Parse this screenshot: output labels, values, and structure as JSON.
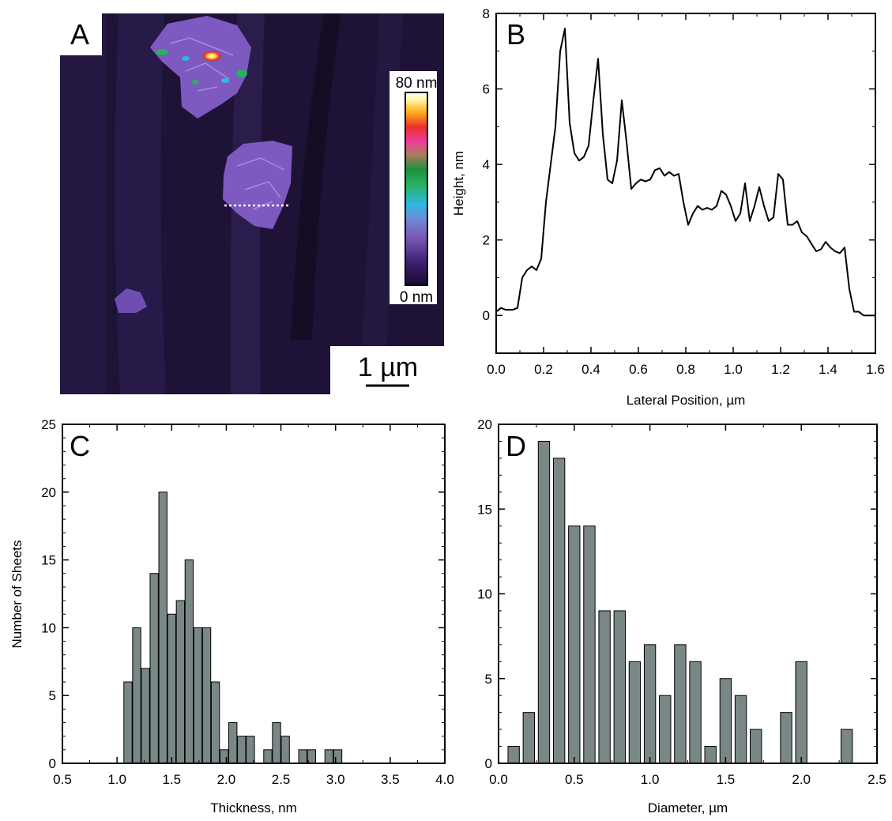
{
  "panels": {
    "A": {
      "label": "A",
      "colorbar_top": "80 nm",
      "colorbar_bottom": "0 nm",
      "scalebar_label": "1 µm",
      "colors": {
        "background": "#1e1336",
        "flake": "#7d59c0",
        "line": "#ffffff"
      }
    },
    "B": {
      "label": "B"
    },
    "C": {
      "label": "C"
    },
    "D": {
      "label": "D"
    }
  },
  "chart_data": [
    {
      "panel": "B",
      "type": "line",
      "xlabel": "Lateral Position, µm",
      "ylabel": "Height, nm",
      "xlim": [
        0.0,
        1.6
      ],
      "ylim": [
        -1,
        8
      ],
      "xticks": [
        "0.0",
        "0.2",
        "0.4",
        "0.6",
        "0.8",
        "1.0",
        "1.2",
        "1.4",
        "1.6"
      ],
      "yticks": [
        "0",
        "2",
        "4",
        "6",
        "8"
      ],
      "x": [
        0.0,
        0.02,
        0.04,
        0.07,
        0.09,
        0.11,
        0.13,
        0.15,
        0.17,
        0.19,
        0.21,
        0.23,
        0.25,
        0.27,
        0.29,
        0.31,
        0.33,
        0.35,
        0.37,
        0.39,
        0.41,
        0.43,
        0.45,
        0.47,
        0.49,
        0.51,
        0.53,
        0.55,
        0.57,
        0.59,
        0.61,
        0.63,
        0.65,
        0.67,
        0.69,
        0.71,
        0.73,
        0.75,
        0.77,
        0.79,
        0.81,
        0.83,
        0.85,
        0.87,
        0.89,
        0.91,
        0.93,
        0.95,
        0.97,
        0.99,
        1.01,
        1.03,
        1.05,
        1.07,
        1.09,
        1.11,
        1.13,
        1.15,
        1.17,
        1.19,
        1.21,
        1.23,
        1.25,
        1.27,
        1.29,
        1.31,
        1.33,
        1.35,
        1.37,
        1.39,
        1.41,
        1.43,
        1.45,
        1.47,
        1.49,
        1.51,
        1.53,
        1.55,
        1.57,
        1.6
      ],
      "y": [
        0.1,
        0.2,
        0.15,
        0.15,
        0.2,
        1.0,
        1.2,
        1.3,
        1.2,
        1.5,
        3.0,
        4.0,
        5.0,
        7.0,
        7.6,
        5.1,
        4.3,
        4.1,
        4.2,
        4.5,
        5.7,
        6.8,
        4.8,
        3.6,
        3.5,
        4.1,
        5.7,
        4.6,
        3.35,
        3.5,
        3.6,
        3.55,
        3.6,
        3.85,
        3.9,
        3.7,
        3.8,
        3.7,
        3.75,
        3.0,
        2.4,
        2.7,
        2.9,
        2.8,
        2.85,
        2.8,
        2.9,
        3.3,
        3.2,
        2.9,
        2.5,
        2.7,
        3.5,
        2.5,
        2.9,
        3.4,
        2.9,
        2.5,
        2.6,
        3.75,
        3.6,
        2.4,
        2.4,
        2.5,
        2.2,
        2.1,
        1.9,
        1.7,
        1.75,
        1.95,
        1.8,
        1.7,
        1.65,
        1.8,
        0.7,
        0.1,
        0.1,
        0.0,
        0.0,
        0.0
      ]
    },
    {
      "panel": "C",
      "type": "bar",
      "xlabel": "Thickness, nm",
      "ylabel": "Number of Sheets",
      "xlim": [
        0.5,
        4.0
      ],
      "ylim": [
        0,
        25
      ],
      "xticks": [
        "0.5",
        "1.0",
        "1.5",
        "2.0",
        "2.5",
        "3.0",
        "3.5",
        "4.0"
      ],
      "yticks": [
        "0",
        "5",
        "10",
        "15",
        "20",
        "25"
      ],
      "bin_width": 0.075,
      "x": [
        1.1,
        1.18,
        1.26,
        1.34,
        1.42,
        1.5,
        1.58,
        1.66,
        1.74,
        1.82,
        1.9,
        1.98,
        2.06,
        2.14,
        2.22,
        2.3,
        2.38,
        2.46,
        2.54,
        2.62,
        2.7,
        2.78,
        2.86,
        2.94,
        3.02,
        3.1,
        3.18,
        3.26,
        3.34,
        3.42,
        3.5
      ],
      "values": [
        6,
        10,
        7,
        14,
        20,
        11,
        12,
        15,
        10,
        10,
        6,
        1,
        3,
        2,
        2,
        0,
        1,
        3,
        2,
        0,
        1,
        1,
        0,
        1,
        1,
        0,
        0,
        0,
        0,
        0,
        0
      ],
      "colors": {
        "bar": "#7a8787"
      }
    },
    {
      "panel": "D",
      "type": "bar",
      "xlabel": "Diameter, µm",
      "ylabel": "",
      "xlim": [
        0.0,
        2.5
      ],
      "ylim": [
        0,
        20
      ],
      "xticks": [
        "0.0",
        "0.5",
        "1.0",
        "1.5",
        "2.0",
        "2.5"
      ],
      "yticks": [
        "0",
        "5",
        "10",
        "15",
        "20"
      ],
      "bin_width": 0.075,
      "x": [
        0.1,
        0.2,
        0.3,
        0.4,
        0.5,
        0.6,
        0.7,
        0.8,
        0.9,
        1.0,
        1.1,
        1.2,
        1.3,
        1.4,
        1.5,
        1.6,
        1.7,
        1.8,
        1.9,
        2.0,
        2.1,
        2.2,
        2.3
      ],
      "values": [
        1,
        3,
        19,
        18,
        14,
        14,
        9,
        9,
        6,
        7,
        4,
        7,
        6,
        1,
        5,
        4,
        2,
        0,
        3,
        6,
        0,
        0,
        2
      ],
      "colors": {
        "bar": "#7a8787"
      }
    }
  ]
}
